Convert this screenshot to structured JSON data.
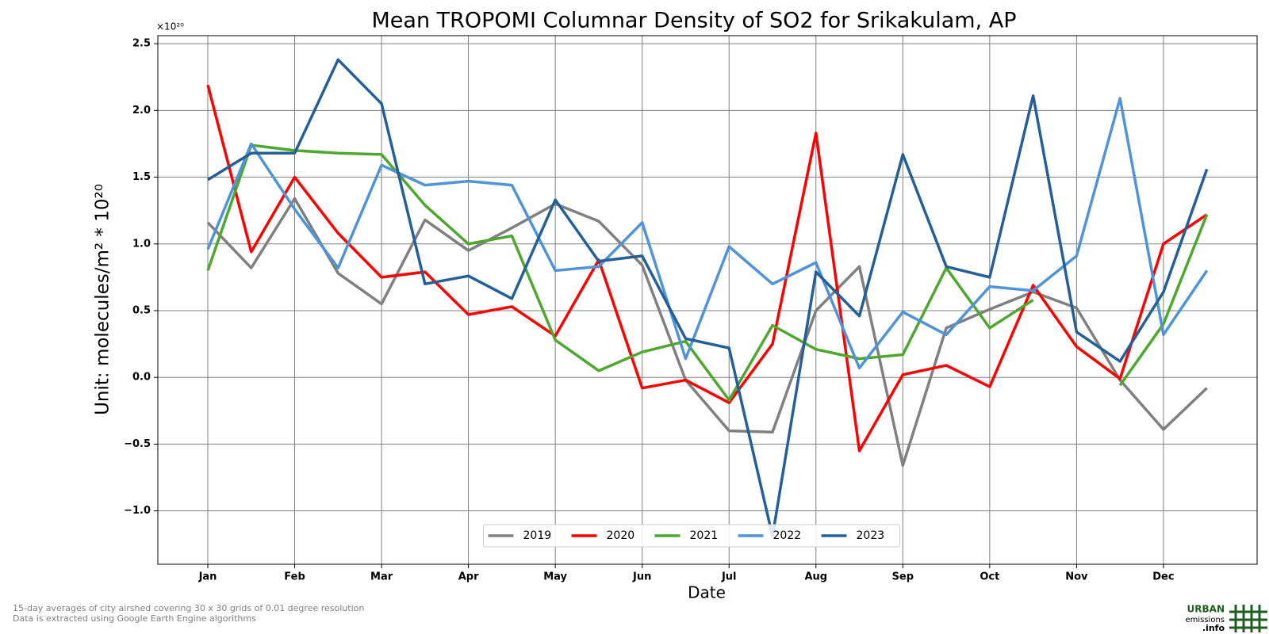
{
  "chart_data": {
    "type": "line",
    "title": "Mean TROPOMI Columnar Density of SO2 for Srikakulam, AP",
    "x_label": "Date",
    "y_label": "Unit: molecules/m² * 10²⁰",
    "y_multiplier": "×10²⁰",
    "categories": [
      "Jan",
      null,
      "Feb",
      null,
      "Mar",
      null,
      "Apr",
      null,
      "May",
      null,
      "Jun",
      null,
      "Jul",
      null,
      "Aug",
      null,
      "Sep",
      null,
      "Oct",
      null,
      "Nov",
      null,
      "Dec",
      null
    ],
    "series": [
      {
        "name": "2019",
        "color": "#808080",
        "values": [
          1.16,
          0.82,
          1.34,
          0.78,
          0.55,
          1.18,
          0.95,
          1.12,
          1.3,
          1.17,
          0.84,
          -0.02,
          -0.4,
          -0.41,
          0.5,
          0.83,
          -0.66,
          0.37,
          0.51,
          0.64,
          0.52,
          -0.02,
          -0.39,
          -0.08
        ]
      },
      {
        "name": "2020",
        "color": "#ff0000",
        "values": [
          2.19,
          0.94,
          1.5,
          1.08,
          0.75,
          0.79,
          0.47,
          0.53,
          0.31,
          0.88,
          -0.08,
          -0.02,
          -0.19,
          0.25,
          1.83,
          -0.55,
          0.02,
          0.09,
          -0.07,
          0.69,
          0.23,
          -0.01,
          1.0,
          1.22
        ]
      },
      {
        "name": "2021",
        "color": "#4ea72e",
        "values": [
          0.8,
          1.74,
          1.7,
          1.68,
          1.67,
          1.29,
          1.0,
          1.06,
          0.28,
          0.05,
          0.19,
          0.27,
          -0.17,
          0.39,
          0.21,
          0.14,
          0.17,
          0.82,
          0.37,
          0.58,
          null,
          -0.06,
          0.4,
          1.22
        ]
      },
      {
        "name": "2022",
        "color": "#4f93d8",
        "values": [
          0.96,
          1.75,
          1.26,
          0.82,
          1.59,
          1.44,
          1.47,
          1.44,
          0.8,
          0.83,
          1.16,
          0.14,
          0.98,
          0.7,
          0.86,
          0.07,
          0.49,
          0.32,
          0.68,
          0.65,
          0.91,
          2.09,
          0.32,
          0.8
        ]
      },
      {
        "name": "2023",
        "color": "#245f98",
        "values": [
          1.48,
          1.68,
          1.68,
          2.38,
          2.05,
          0.7,
          0.76,
          0.59,
          1.33,
          0.87,
          0.91,
          0.29,
          0.22,
          -1.19,
          0.79,
          0.46,
          1.67,
          0.83,
          0.75,
          2.11,
          0.34,
          0.12,
          0.64,
          1.56
        ]
      }
    ],
    "ylim": [
      -1.4,
      2.56
    ],
    "yticks": [
      {
        "value": -1,
        "label": "−1.0"
      },
      {
        "value": -0.5,
        "label": "−0.5"
      },
      {
        "value": 0,
        "label": "0.0"
      },
      0.5,
      {
        "value": 1,
        "label": "1.0"
      },
      1.5,
      {
        "value": 2,
        "label": "2.0"
      },
      2.5
    ],
    "grid": true,
    "legend": "lower center",
    "footnotes": [
      "15-day averages of city airshed covering 30 x 30 grids of 0.01 degree resolution",
      "Data is extracted using Google Earth Engine algorithms"
    ],
    "logo": [
      "URBAN",
      "emissions",
      ".info"
    ]
  }
}
